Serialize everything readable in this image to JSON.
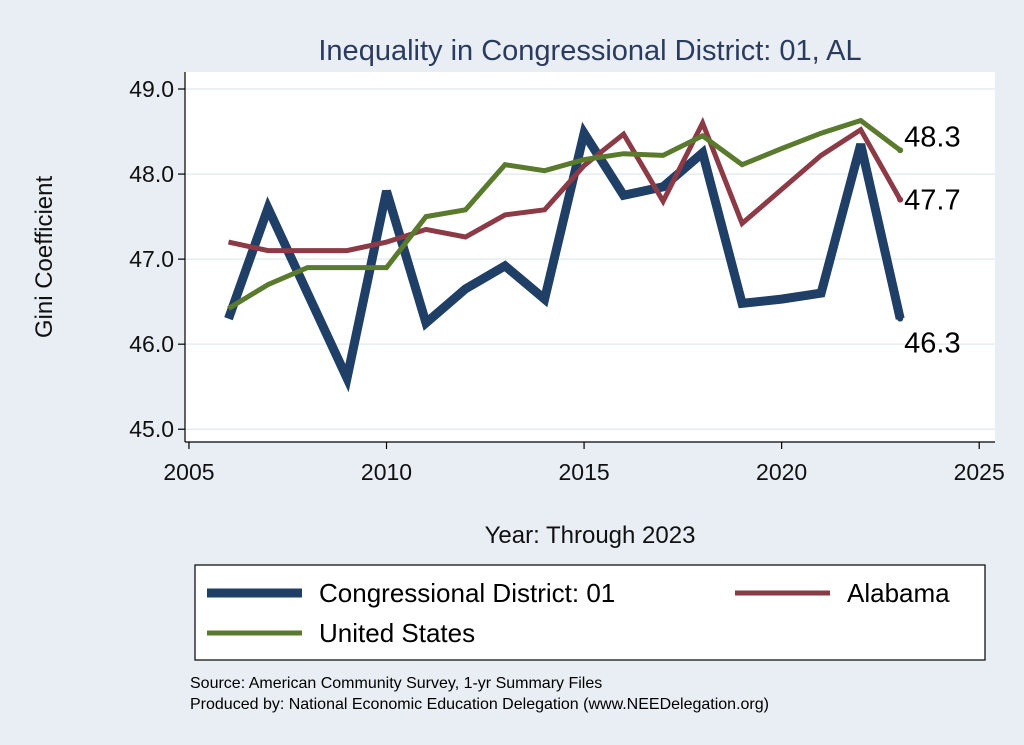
{
  "chart_data": {
    "type": "line",
    "title": "Inequality in Congressional District:  01, AL",
    "xlabel": "Year: Through 2023",
    "ylabel": "Gini Coefficient",
    "xlim": [
      2004.9,
      2025.4
    ],
    "ylim": [
      44.85,
      49.2
    ],
    "xticks": [
      2005,
      2010,
      2015,
      2020,
      2025
    ],
    "yticks": [
      45.0,
      46.0,
      47.0,
      48.0,
      49.0
    ],
    "ytick_labels": [
      "45.0",
      "46.0",
      "47.0",
      "48.0",
      "49.0"
    ],
    "grid": true,
    "legend_position": "bottom",
    "series": [
      {
        "name": "Congressional District:  01",
        "color": "#1f3f66",
        "width": 9,
        "x": [
          2006,
          2007,
          2008,
          2009,
          2010,
          2011,
          2012,
          2013,
          2014,
          2015,
          2016,
          2017,
          2018,
          2019,
          2020,
          2021,
          2022,
          2023
        ],
        "y": [
          46.3,
          47.6,
          46.6,
          45.6,
          47.8,
          46.25,
          46.65,
          46.92,
          46.53,
          48.48,
          47.75,
          47.85,
          48.25,
          46.48,
          46.53,
          46.6,
          48.35,
          46.3
        ],
        "end_label": "46.3"
      },
      {
        "name": "Alabama",
        "color": "#8b3a46",
        "width": 5,
        "x": [
          2006,
          2007,
          2008,
          2009,
          2010,
          2011,
          2012,
          2013,
          2014,
          2015,
          2016,
          2017,
          2018,
          2019,
          2020,
          2021,
          2022,
          2023
        ],
        "y": [
          47.2,
          47.1,
          47.1,
          47.1,
          47.2,
          47.35,
          47.26,
          47.52,
          47.58,
          48.1,
          48.47,
          47.68,
          48.6,
          47.42,
          47.82,
          48.22,
          48.52,
          47.7
        ],
        "end_label": "47.7"
      },
      {
        "name": "United States",
        "color": "#5a7a2e",
        "width": 5,
        "x": [
          2006,
          2007,
          2008,
          2009,
          2010,
          2011,
          2012,
          2013,
          2014,
          2015,
          2016,
          2017,
          2018,
          2019,
          2020,
          2021,
          2022,
          2023
        ],
        "y": [
          46.42,
          46.7,
          46.9,
          46.9,
          46.9,
          47.5,
          47.58,
          48.11,
          48.04,
          48.17,
          48.24,
          48.22,
          48.45,
          48.11,
          48.3,
          48.48,
          48.63,
          48.28
        ],
        "end_label": "48.3"
      }
    ]
  },
  "source_lines": [
    "Source: American Community Survey, 1-yr Summary Files",
    "Produced by: National Economic Education Delegation (www.NEEDelegation.org)"
  ]
}
